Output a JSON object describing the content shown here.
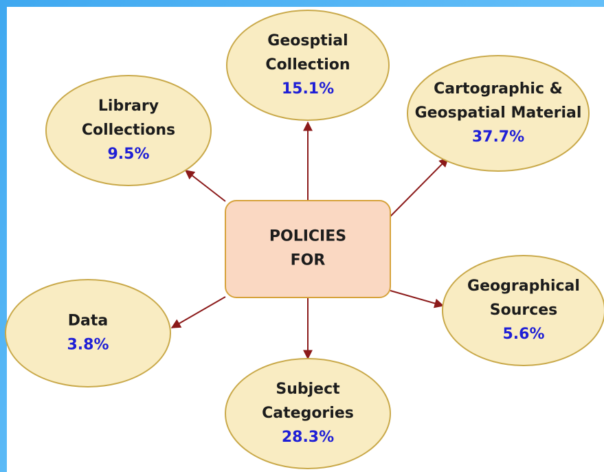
{
  "center": {
    "lines": [
      "POLICIES",
      "FOR"
    ]
  },
  "nodes": [
    {
      "lines": [
        "Geosptial",
        "Collection"
      ],
      "percent": "15.1%"
    },
    {
      "lines": [
        "Cartographic &",
        "Geospatial Material"
      ],
      "percent": "37.7%"
    },
    {
      "lines": [
        "Library",
        "Collections"
      ],
      "percent": "9.5%"
    },
    {
      "lines": [
        "Data"
      ],
      "percent": "3.8%"
    },
    {
      "lines": [
        "Geographical",
        "Sources"
      ],
      "percent": "5.6%"
    },
    {
      "lines": [
        "Subject",
        "Categories"
      ],
      "percent": "28.3%"
    }
  ]
}
